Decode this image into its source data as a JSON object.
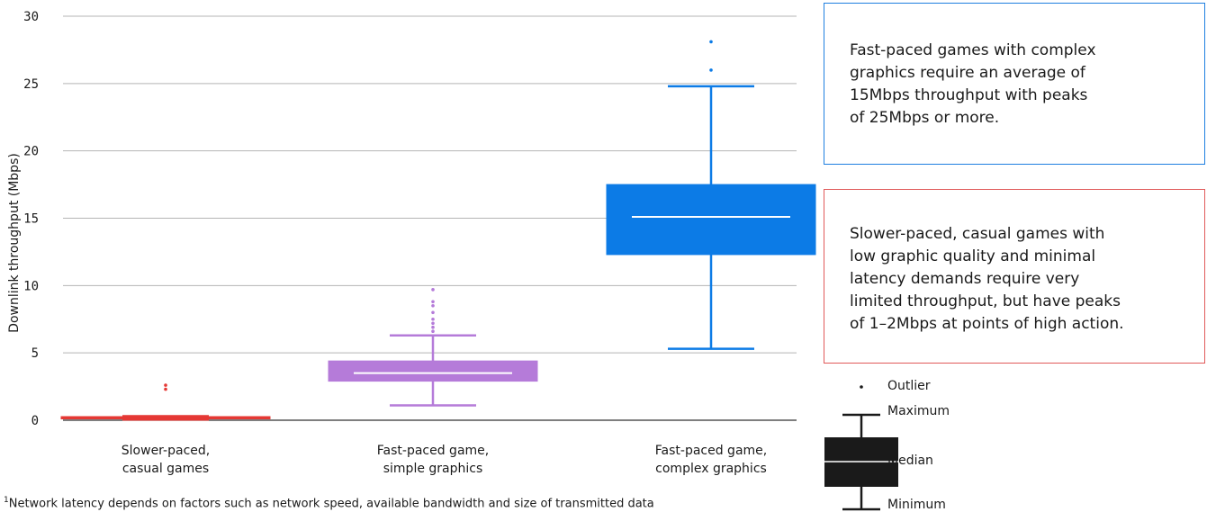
{
  "chart_data": {
    "type": "box",
    "title": "",
    "xlabel": "",
    "ylabel": "Downlink throughput (Mbps)",
    "ylim": [
      0,
      30
    ],
    "yticks": [
      0,
      5,
      10,
      15,
      20,
      25,
      30
    ],
    "grid": true,
    "categories": [
      {
        "label_lines": [
          "Slower-paced,",
          "casual games"
        ],
        "color": "#e53935",
        "min": 0.05,
        "q1": 0.1,
        "median": 0.15,
        "q3": 0.2,
        "max": 0.3,
        "outliers": [
          2.3,
          2.6
        ]
      },
      {
        "label_lines": [
          "Fast-paced game,",
          "simple graphics"
        ],
        "color": "#b57bd9",
        "min": 1.1,
        "q1": 2.9,
        "median": 3.5,
        "q3": 4.4,
        "max": 6.3,
        "outliers": [
          6.6,
          6.9,
          7.2,
          7.5,
          8.0,
          8.5,
          8.8,
          9.7
        ]
      },
      {
        "label_lines": [
          "Fast-paced game,",
          "complex graphics"
        ],
        "color": "#0c7be6",
        "min": 5.3,
        "q1": 12.3,
        "median": 15.1,
        "q3": 17.5,
        "max": 24.8,
        "outliers": [
          26.0,
          28.1
        ]
      }
    ]
  },
  "callouts": {
    "blue": {
      "lines": [
        "Fast-paced games with complex",
        "graphics require an average of",
        "15Mbps throughput with peaks",
        "of 25Mbps or more."
      ],
      "border_color": "#1f7fe0"
    },
    "red": {
      "lines": [
        "Slower-paced, casual games with",
        "low graphic quality and minimal",
        "latency demands require very",
        "limited throughput, but have peaks",
        "of 1–2Mbps at points of high action."
      ],
      "border_color": "#e05a5a"
    }
  },
  "legend": {
    "outlier": "Outlier",
    "maximum": "Maximum",
    "median": "Median",
    "minimum": "Minimum",
    "color": "#1a1a1a"
  },
  "footnote": {
    "marker": "1",
    "text": "Network latency depends on factors such as network speed, available bandwidth and size of transmitted data"
  }
}
